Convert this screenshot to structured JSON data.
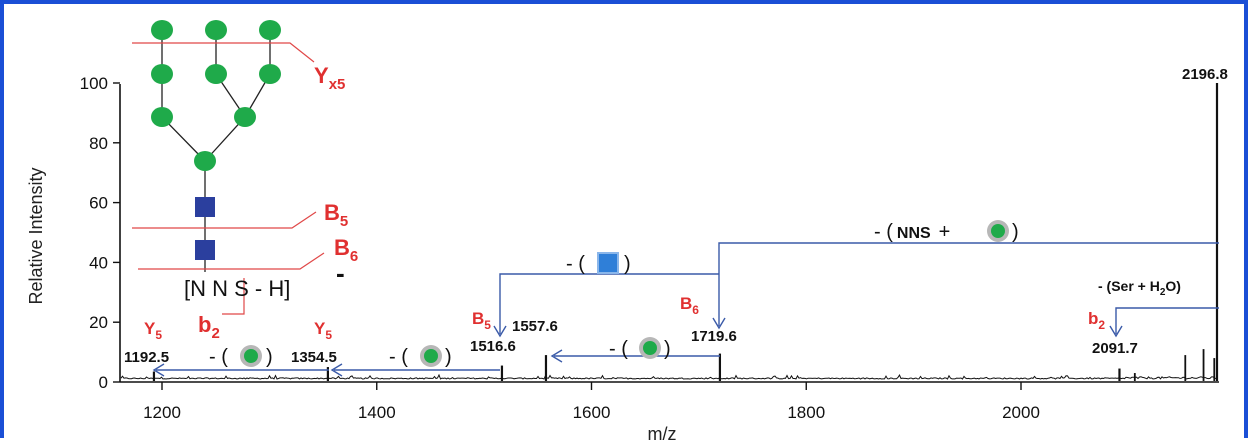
{
  "chart_data": {
    "type": "line",
    "xlabel": "m/z",
    "ylabel": "Relative Intensity",
    "xlim": [
      1160,
      2190
    ],
    "ylim": [
      0,
      105
    ],
    "x_ticks": [
      1200,
      1400,
      1600,
      1800,
      2000
    ],
    "y_ticks": [
      0,
      20,
      40,
      60,
      80,
      100
    ],
    "peaks": [
      {
        "mz": 1192.5,
        "intensity": 3.5,
        "label": "1192.5"
      },
      {
        "mz": 1354.5,
        "intensity": 5.0,
        "label": "1354.5"
      },
      {
        "mz": 1516.6,
        "intensity": 5.5,
        "label": "1516.6"
      },
      {
        "mz": 1557.6,
        "intensity": 9.0,
        "label": "1557.6"
      },
      {
        "mz": 1719.6,
        "intensity": 9.5,
        "label": "1719.6"
      },
      {
        "mz": 2091.7,
        "intensity": 4.5,
        "label": "2091.7"
      },
      {
        "mz": 2196.8,
        "intensity": 100,
        "label": "2196.8"
      }
    ],
    "minor_peaks": [
      {
        "mz": 2153,
        "intensity": 9
      },
      {
        "mz": 2170,
        "intensity": 11
      },
      {
        "mz": 2180,
        "intensity": 8
      },
      {
        "mz": 2186,
        "intensity": 7
      },
      {
        "mz": 2106,
        "intensity": 3
      }
    ],
    "ion_labels": {
      "y5a": "Y",
      "y5a_sub": "5",
      "y5b": "Y",
      "y5b_sub": "5",
      "b5": "B",
      "b5_sub": "5",
      "b6": "B",
      "b6_sub": "6",
      "b2": "b",
      "b2_sub": "2"
    },
    "structure_labels": {
      "yx5": "Y",
      "yx5_sub": "x5",
      "b5": "B",
      "b5_sub": "5",
      "b6": "B",
      "b6_sub": "6",
      "b2": "b",
      "b2_sub": "2",
      "sequence": "[N N S - H]",
      "charge": "-"
    },
    "losses": {
      "hexnac_open": "- (",
      "hexnac_close": ")",
      "nns_open": "- (",
      "nns_text": "NNS",
      "nns_plus": "+",
      "nns_close": ")",
      "ser_h2o_a": "- (Ser + H",
      "ser_h2o_sub": "2",
      "ser_h2o_b": "O)",
      "hex_open": "- (",
      "hex_close": ")"
    },
    "colors": {
      "spectrum": "#111111",
      "arrow": "#3a5aa8",
      "ion_label": "#e03030",
      "hexose": "#1faa4a",
      "hexnac": "#2b3f9e",
      "hexnac_light": "#2f7fd8",
      "frame": "#1a4fd6"
    }
  }
}
